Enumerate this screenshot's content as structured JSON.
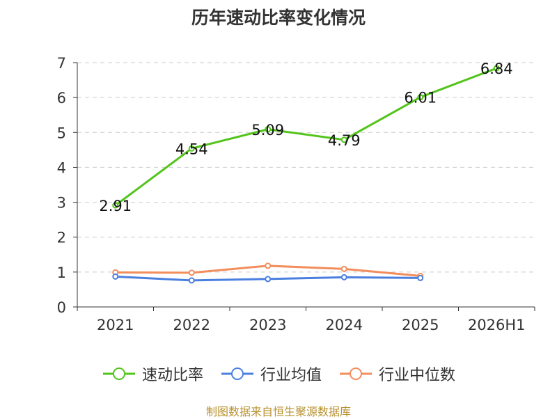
{
  "title": "历年速动比率变化情况",
  "source": "制图数据来自恒生聚源数据库",
  "chart_data": {
    "type": "line",
    "categories": [
      "2021",
      "2022",
      "2023",
      "2024",
      "2025",
      "2026H1"
    ],
    "ylim": [
      0,
      7
    ],
    "yticks": [
      0,
      1,
      2,
      3,
      4,
      5,
      6,
      7
    ],
    "grid": "horizontal-dashed",
    "legend_position": "bottom",
    "series": [
      {
        "name": "速动比率",
        "values": [
          2.91,
          4.54,
          5.09,
          4.79,
          6.01,
          6.84
        ],
        "color": "#52c41a",
        "labels": [
          "2.91",
          "4.54",
          "5.09",
          "4.79",
          "6.01",
          "6.84"
        ]
      },
      {
        "name": "行业均值",
        "values": [
          0.87,
          0.76,
          0.8,
          0.85,
          0.83,
          null
        ],
        "color": "#4a7fe0"
      },
      {
        "name": "行业中位数",
        "values": [
          0.99,
          0.98,
          1.18,
          1.09,
          0.89,
          null
        ],
        "color": "#f28d5c"
      }
    ]
  }
}
